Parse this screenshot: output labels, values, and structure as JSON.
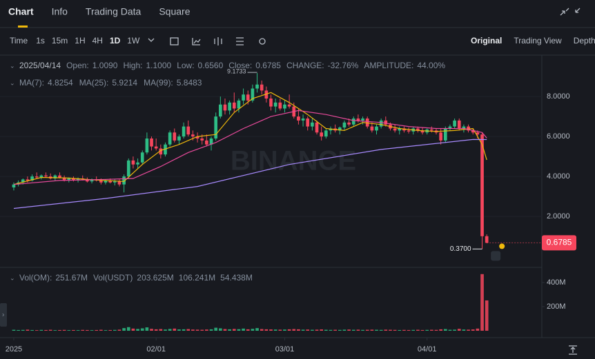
{
  "tabs": [
    "Chart",
    "Info",
    "Trading Data",
    "Square"
  ],
  "intervals": [
    "Time",
    "1s",
    "15m",
    "1H",
    "4H",
    "1D",
    "1W"
  ],
  "views": [
    "Original",
    "Trading View",
    "Depth"
  ],
  "info": {
    "date": "2025/04/14",
    "fields": [
      {
        "label": "Open:",
        "value": "1.0090"
      },
      {
        "label": "High:",
        "value": "1.1000"
      },
      {
        "label": "Low:",
        "value": "0.6560"
      },
      {
        "label": "Close:",
        "value": "0.6785"
      },
      {
        "label": "CHANGE:",
        "value": "-32.76%"
      },
      {
        "label": "AMPLITUDE:",
        "value": "44.00%"
      }
    ]
  },
  "vol_legend": {
    "label": "Vol(OM):",
    "value": "251.67M",
    "label2": "Vol(USDT)",
    "values": [
      {
        "value": "203.625M",
        "color": "#eaecef"
      },
      {
        "value": "106.241M",
        "color": "#31c5f4"
      },
      {
        "value": "54.438M",
        "color": "#e84a9b"
      }
    ]
  },
  "watermark": "BINANCE",
  "last_price": "0.6785",
  "chart_data": {
    "type": "candlestick",
    "up_color": "#2ebd85",
    "down_color": "#f6465d",
    "xlim": [
      -3,
      115
    ],
    "xticks": [
      {
        "value": 0,
        "label": "2025"
      },
      {
        "value": 31,
        "label": "02/01"
      },
      {
        "value": 59,
        "label": "03/01"
      },
      {
        "value": 90,
        "label": "04/01"
      }
    ],
    "ylim": [
      -0.55,
      9.9
    ],
    "yticks": [
      {
        "value": 8,
        "label": "8.0000"
      },
      {
        "value": 6,
        "label": "6.0000"
      },
      {
        "value": 4,
        "label": "4.0000"
      },
      {
        "value": 2,
        "label": "2.0000"
      }
    ],
    "high_label": "9.1733",
    "low_label": "0.3700",
    "candles": [
      [
        3.45,
        3.7,
        3.3,
        3.6
      ],
      [
        3.6,
        3.8,
        3.5,
        3.7
      ],
      [
        3.7,
        3.9,
        3.6,
        3.85
      ],
      [
        3.85,
        4.0,
        3.7,
        3.8
      ],
      [
        3.8,
        4.1,
        3.75,
        4.0
      ],
      [
        4.0,
        4.2,
        3.9,
        3.95
      ],
      [
        3.95,
        4.1,
        3.85,
        4.05
      ],
      [
        4.05,
        4.2,
        3.95,
        4.0
      ],
      [
        4.0,
        4.15,
        3.85,
        3.9
      ],
      [
        3.9,
        4.1,
        3.8,
        4.05
      ],
      [
        4.05,
        4.2,
        3.9,
        3.95
      ],
      [
        3.95,
        4.05,
        3.75,
        3.8
      ],
      [
        3.8,
        3.95,
        3.7,
        3.9
      ],
      [
        3.9,
        4.0,
        3.75,
        3.8
      ],
      [
        3.8,
        3.95,
        3.7,
        3.9
      ],
      [
        3.9,
        4.05,
        3.8,
        3.85
      ],
      [
        3.85,
        3.95,
        3.7,
        3.75
      ],
      [
        3.75,
        3.9,
        3.65,
        3.85
      ],
      [
        3.85,
        4.0,
        3.75,
        3.8
      ],
      [
        3.8,
        3.9,
        3.6,
        3.7
      ],
      [
        3.7,
        3.85,
        3.6,
        3.8
      ],
      [
        3.8,
        3.9,
        3.65,
        3.7
      ],
      [
        3.7,
        3.85,
        3.55,
        3.75
      ],
      [
        3.75,
        3.85,
        3.5,
        3.6
      ],
      [
        3.6,
        4.1,
        3.2,
        4.0
      ],
      [
        4.0,
        4.9,
        3.9,
        4.8
      ],
      [
        4.8,
        5.0,
        4.4,
        4.6
      ],
      [
        4.6,
        4.9,
        4.4,
        4.7
      ],
      [
        4.7,
        5.3,
        4.6,
        5.2
      ],
      [
        5.2,
        6.2,
        5.1,
        5.9
      ],
      [
        5.9,
        6.0,
        5.3,
        5.5
      ],
      [
        5.5,
        5.9,
        5.3,
        5.4
      ],
      [
        5.4,
        5.6,
        4.9,
        5.1
      ],
      [
        5.1,
        5.7,
        5.0,
        5.6
      ],
      [
        5.6,
        6.3,
        5.5,
        6.2
      ],
      [
        6.2,
        6.4,
        5.7,
        5.8
      ],
      [
        5.8,
        6.1,
        5.6,
        6.0
      ],
      [
        6.0,
        6.7,
        5.9,
        6.5
      ],
      [
        6.5,
        6.8,
        6.0,
        6.1
      ],
      [
        6.1,
        6.3,
        5.8,
        6.0
      ],
      [
        6.0,
        6.2,
        5.7,
        5.9
      ],
      [
        5.9,
        6.1,
        5.6,
        5.8
      ],
      [
        5.8,
        6.1,
        5.5,
        5.6
      ],
      [
        5.6,
        6.0,
        5.3,
        5.9
      ],
      [
        5.9,
        7.2,
        5.8,
        7.0
      ],
      [
        7.0,
        8.0,
        6.9,
        7.6
      ],
      [
        7.6,
        7.9,
        7.1,
        7.3
      ],
      [
        7.3,
        7.8,
        7.1,
        7.7
      ],
      [
        7.7,
        8.2,
        7.2,
        7.4
      ],
      [
        7.4,
        7.9,
        7.2,
        7.8
      ],
      [
        7.8,
        8.4,
        7.6,
        8.1
      ],
      [
        8.1,
        8.3,
        7.6,
        7.8
      ],
      [
        7.8,
        8.6,
        7.7,
        8.4
      ],
      [
        8.4,
        9.1733,
        8.2,
        8.6
      ],
      [
        8.6,
        8.8,
        8.1,
        8.3
      ],
      [
        8.3,
        8.5,
        7.7,
        7.9
      ],
      [
        7.9,
        8.1,
        7.3,
        7.5
      ],
      [
        7.5,
        7.9,
        7.2,
        7.7
      ],
      [
        7.7,
        7.9,
        7.3,
        7.4
      ],
      [
        7.4,
        7.8,
        7.2,
        7.6
      ],
      [
        7.6,
        8.1,
        7.4,
        7.5
      ],
      [
        7.5,
        7.7,
        6.9,
        7.0
      ],
      [
        7.0,
        7.4,
        6.6,
        6.8
      ],
      [
        6.8,
        7.1,
        6.5,
        6.9
      ],
      [
        6.9,
        7.0,
        6.3,
        6.5
      ],
      [
        6.5,
        6.9,
        6.3,
        6.7
      ],
      [
        6.7,
        6.8,
        6.1,
        6.2
      ],
      [
        6.2,
        6.5,
        5.8,
        6.0
      ],
      [
        6.0,
        6.4,
        5.9,
        6.3
      ],
      [
        6.3,
        6.5,
        6.1,
        6.4
      ],
      [
        6.4,
        6.6,
        6.2,
        6.3
      ],
      [
        6.3,
        6.5,
        6.1,
        6.45
      ],
      [
        6.45,
        6.8,
        6.3,
        6.7
      ],
      [
        6.7,
        6.9,
        6.5,
        6.6
      ],
      [
        6.6,
        7.0,
        6.5,
        6.9
      ],
      [
        6.9,
        7.1,
        6.7,
        6.8
      ],
      [
        6.8,
        7.0,
        6.6,
        6.9
      ],
      [
        6.9,
        7.0,
        6.4,
        6.5
      ],
      [
        6.5,
        6.7,
        6.2,
        6.3
      ],
      [
        6.3,
        6.6,
        6.1,
        6.5
      ],
      [
        6.5,
        6.9,
        6.4,
        6.8
      ],
      [
        6.8,
        7.0,
        6.5,
        6.6
      ],
      [
        6.6,
        6.7,
        6.3,
        6.4
      ],
      [
        6.4,
        6.6,
        6.2,
        6.3
      ],
      [
        6.3,
        6.5,
        6.1,
        6.4
      ],
      [
        6.4,
        6.5,
        6.2,
        6.3
      ],
      [
        6.3,
        6.45,
        6.15,
        6.25
      ],
      [
        6.25,
        6.5,
        6.1,
        6.4
      ],
      [
        6.4,
        6.5,
        6.2,
        6.3
      ],
      [
        6.3,
        6.45,
        6.1,
        6.2
      ],
      [
        6.2,
        6.4,
        6.1,
        6.35
      ],
      [
        6.35,
        6.5,
        6.2,
        6.3
      ],
      [
        6.3,
        6.4,
        6.1,
        6.2
      ],
      [
        6.2,
        6.4,
        5.6,
        5.8
      ],
      [
        5.8,
        6.5,
        5.7,
        6.4
      ],
      [
        6.4,
        6.6,
        6.3,
        6.5
      ],
      [
        6.5,
        6.9,
        6.4,
        6.8
      ],
      [
        6.8,
        6.9,
        6.3,
        6.4
      ],
      [
        6.4,
        6.6,
        6.2,
        6.5
      ],
      [
        6.5,
        6.6,
        6.2,
        6.3
      ],
      [
        6.3,
        6.4,
        6.1,
        6.2
      ],
      [
        6.2,
        6.3,
        5.9,
        6.1
      ],
      [
        6.1,
        6.2,
        0.37,
        1.009
      ],
      [
        1.009,
        1.1,
        0.656,
        0.6785
      ]
    ],
    "ma": [
      {
        "name": "MA(7):",
        "label": "4.8254",
        "color": "#f0b90b",
        "x": [
          0,
          6,
          12,
          18,
          24,
          28,
          32,
          36,
          40,
          44,
          48,
          52,
          56,
          60,
          64,
          68,
          72,
          76,
          80,
          84,
          88,
          92,
          96,
          100,
          102,
          103
        ],
        "values": [
          3.6,
          3.95,
          3.92,
          3.82,
          3.75,
          4.6,
          5.3,
          5.6,
          6.0,
          6.1,
          7.2,
          7.9,
          8.2,
          7.7,
          7.1,
          6.4,
          6.3,
          6.7,
          6.6,
          6.4,
          6.3,
          6.25,
          6.3,
          6.4,
          5.6,
          4.8254
        ]
      },
      {
        "name": "MA(25):",
        "label": "5.9214",
        "color": "#e84a9b",
        "x": [
          0,
          10,
          20,
          26,
          32,
          38,
          44,
          50,
          56,
          62,
          68,
          74,
          80,
          86,
          92,
          98,
          102,
          103
        ],
        "values": [
          3.6,
          3.8,
          3.85,
          3.9,
          4.5,
          5.2,
          5.7,
          6.4,
          7.0,
          7.3,
          7.1,
          6.8,
          6.7,
          6.5,
          6.4,
          6.4,
          6.2,
          5.9214
        ]
      },
      {
        "name": "MA(99):",
        "label": "5.8483",
        "color": "#a88bff",
        "x": [
          0,
          20,
          40,
          60,
          80,
          100,
          103
        ],
        "values": [
          2.4,
          2.9,
          3.5,
          4.6,
          5.35,
          5.85,
          5.8483
        ]
      }
    ],
    "volume": {
      "ylim": [
        0,
        486
      ],
      "yticks": [
        {
          "value": 400,
          "label": "400M"
        },
        {
          "value": 200,
          "label": "200M"
        }
      ],
      "values": [
        8,
        6,
        7,
        9,
        6,
        5,
        7,
        6,
        8,
        5,
        6,
        7,
        5,
        6,
        5,
        7,
        6,
        5,
        6,
        8,
        5,
        6,
        7,
        9,
        22,
        30,
        18,
        15,
        20,
        28,
        16,
        12,
        14,
        10,
        15,
        18,
        11,
        12,
        14,
        10,
        9,
        8,
        10,
        12,
        25,
        20,
        14,
        12,
        15,
        13,
        18,
        12,
        16,
        22,
        14,
        12,
        11,
        10,
        9,
        10,
        12,
        14,
        12,
        9,
        10,
        8,
        9,
        11,
        8,
        7,
        8,
        7,
        9,
        10,
        8,
        9,
        7,
        8,
        9,
        8,
        7,
        9,
        8,
        7,
        6,
        7,
        6,
        7,
        8,
        6,
        7,
        8,
        7,
        12,
        14,
        8,
        9,
        16,
        10,
        9,
        11,
        18,
        470,
        251.67
      ]
    }
  }
}
